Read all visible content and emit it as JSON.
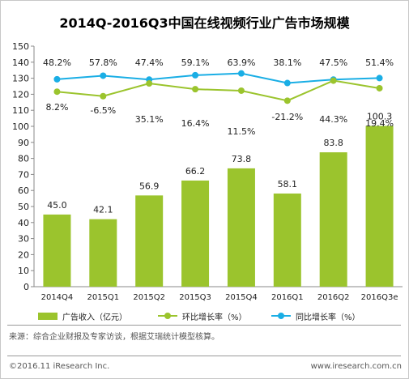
{
  "title": "2014Q-2016Q3中国在线视频行业广告市场规模",
  "source": "来源：综合企业财报及专家访谈，根据艾瑞统计模型核算。",
  "copyright": "©2016.11 iResearch Inc.",
  "website": "www.iresearch.com.cn",
  "legend": {
    "bar": "广告收入（亿元）",
    "qoq": "环比增长率（%）",
    "yoy": "同比增长率（%）"
  },
  "colors": {
    "bar": "#9bc42d",
    "qoq": "#9bc42d",
    "yoy": "#1aaee5",
    "axis": "#888888"
  },
  "chart_data": {
    "type": "bar",
    "title": "2014Q-2016Q3中国在线视频行业广告市场规模",
    "categories": [
      "2014Q4",
      "2015Q1",
      "2015Q2",
      "2015Q3",
      "2015Q4",
      "2016Q1",
      "2016Q2",
      "2016Q3e"
    ],
    "ylim": [
      0,
      150
    ],
    "yticks": [
      0,
      10,
      20,
      30,
      40,
      50,
      60,
      70,
      80,
      90,
      100,
      110,
      120,
      130,
      140,
      150
    ],
    "grid": false,
    "legend_position": "bottom",
    "series": [
      {
        "name": "广告收入（亿元）",
        "kind": "bar",
        "values": [
          45.0,
          42.1,
          56.9,
          66.2,
          73.8,
          58.1,
          83.8,
          100.3
        ],
        "labels": [
          "45.0",
          "42.1",
          "56.9",
          "66.2",
          "73.8",
          "58.1",
          "83.8",
          "100.3"
        ]
      },
      {
        "name": "环比增长率（%）",
        "kind": "line",
        "values": [
          8.2,
          -6.5,
          35.1,
          16.4,
          11.5,
          -21.2,
          44.3,
          19.4
        ],
        "labels": [
          "8.2%",
          "-6.5%",
          "35.1%",
          "16.4%",
          "11.5%",
          "-21.2%",
          "44.3%",
          "19.4%"
        ]
      },
      {
        "name": "同比增长率（%）",
        "kind": "line",
        "values": [
          48.2,
          57.8,
          47.4,
          59.1,
          63.9,
          38.1,
          47.5,
          51.4
        ],
        "labels": [
          "48.2%",
          "57.8%",
          "47.4%",
          "59.1%",
          "63.9%",
          "38.1%",
          "47.5%",
          "51.4%"
        ]
      }
    ]
  }
}
